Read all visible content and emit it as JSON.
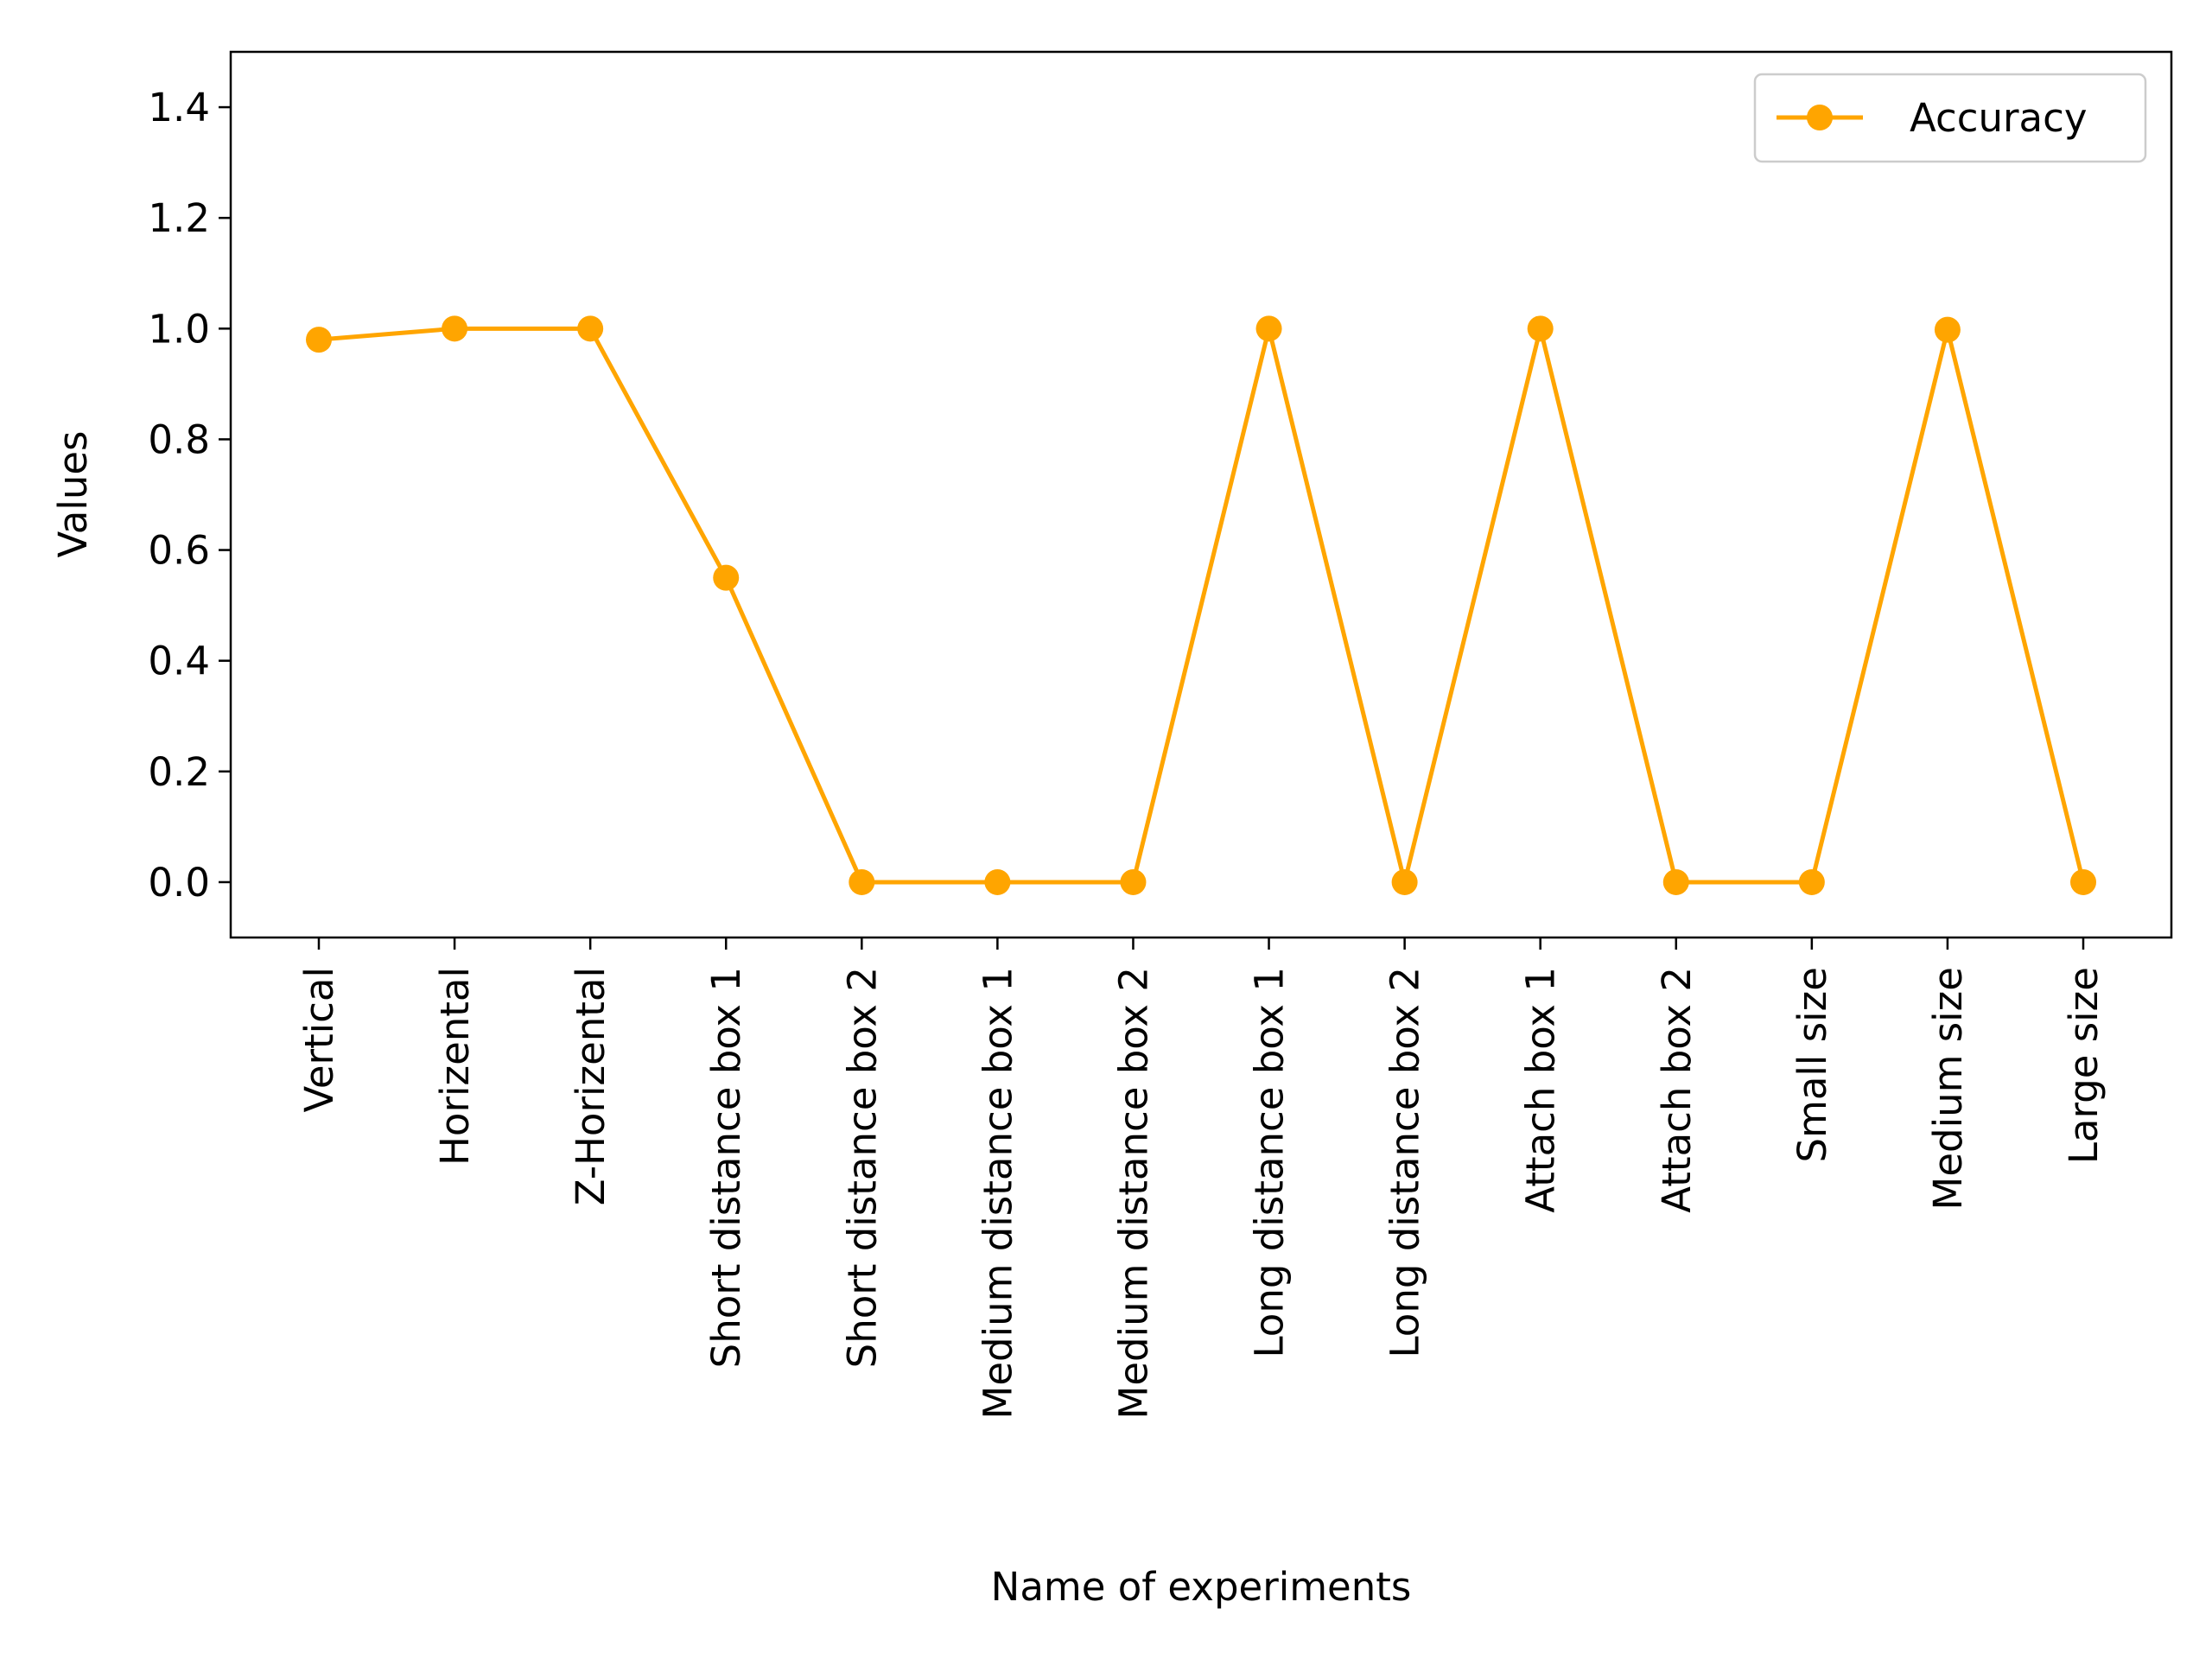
{
  "chart_data": {
    "type": "line",
    "title": "",
    "xlabel": "Name of experiments",
    "ylabel": "Values",
    "categories": [
      "Vertical",
      "Horizental",
      "Z-Horizental",
      "Short distance box 1",
      "Short distance box 2",
      "Medium distance box 1",
      "Medium distance box 2",
      "Long distance box 1",
      "Long distance box 2",
      "Attach box 1",
      "Attach box 2",
      "Small size",
      "Medium size",
      "Large size"
    ],
    "series": [
      {
        "name": "Accuracy",
        "color": "#ffa500",
        "marker": "circle",
        "values": [
          0.98,
          1.0,
          1.0,
          0.55,
          0.0,
          0.0,
          0.0,
          1.0,
          0.0,
          1.0,
          0.0,
          0.0,
          0.998,
          0.0
        ]
      }
    ],
    "ylim": [
      -0.1,
      1.5
    ],
    "yticks": [
      "0.0",
      "0.2",
      "0.4",
      "0.6",
      "0.8",
      "1.0",
      "1.2",
      "1.4"
    ],
    "grid": false,
    "legend_position": "top-right"
  }
}
